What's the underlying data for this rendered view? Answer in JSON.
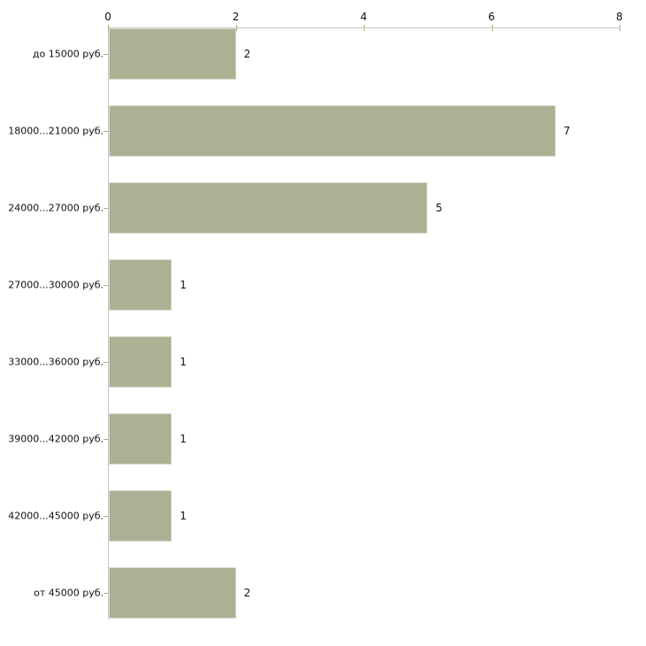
{
  "chart_data": {
    "type": "bar",
    "orientation": "horizontal",
    "title": "",
    "xlabel": "",
    "ylabel": "",
    "categories": [
      "до 15000 руб.",
      "18000...21000 руб.",
      "24000...27000 руб.",
      "27000...30000 руб.",
      "33000...36000 руб.",
      "39000...42000 руб.",
      "42000...45000 руб.",
      "от 45000 руб."
    ],
    "values": [
      2,
      7,
      5,
      1,
      1,
      1,
      1,
      2
    ],
    "value_labels": [
      "2",
      "7",
      "5",
      "1",
      "1",
      "1",
      "1",
      "2"
    ],
    "x_ticks": [
      0,
      2,
      4,
      6,
      8
    ],
    "x_tick_labels": [
      "0",
      "2",
      "4",
      "6",
      "8"
    ],
    "xlim": [
      0,
      8
    ],
    "grid": false,
    "legend": false,
    "axis_position": "top",
    "colors": {
      "background": "#ffffff",
      "bar_fill": "#abb294",
      "bar_edge": "#d8dbcf",
      "axis_line": "#c6c6c6",
      "tick_mark": "#b5aa7d",
      "text": "#111111"
    }
  }
}
